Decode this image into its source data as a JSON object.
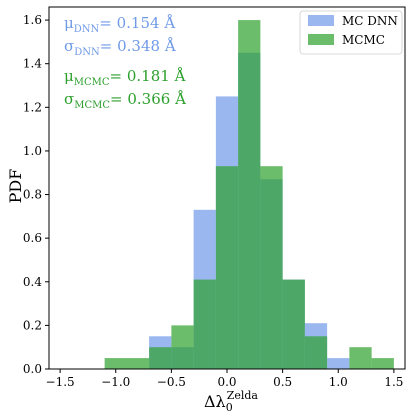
{
  "chart_data": {
    "type": "bar",
    "xlabel": "Δλ",
    "xlabel_sub": "0",
    "xlabel_sup": "Zelda",
    "ylabel": "PDF",
    "xlim": [
      -1.6,
      1.6
    ],
    "ylim": [
      0,
      1.66
    ],
    "xticks": [
      -1.5,
      -1.0,
      -0.5,
      0.0,
      0.5,
      1.0,
      1.5
    ],
    "yticks": [
      0.0,
      0.2,
      0.4,
      0.6,
      0.8,
      1.0,
      1.2,
      1.4,
      1.6
    ],
    "xtick_labels": [
      "−1.5",
      "−1.0",
      "−0.5",
      "0.0",
      "0.5",
      "1.0",
      "1.5"
    ],
    "ytick_labels": [
      "0.0",
      "0.2",
      "0.4",
      "0.6",
      "0.8",
      "1.0",
      "1.2",
      "1.4",
      "1.6"
    ],
    "bin_width": 0.2,
    "legend_placement": "top-right",
    "series": [
      {
        "name": "MC DNN",
        "color": "#6f9ae8",
        "opacity": 0.7,
        "bin_edges": [
          -0.7,
          -0.5,
          -0.3,
          -0.1,
          0.1,
          0.3,
          0.5,
          0.7,
          0.9,
          1.1
        ],
        "values": [
          0.15,
          0.1,
          0.73,
          1.25,
          1.45,
          0.87,
          0.41,
          0.21,
          0.05
        ],
        "stats": [
          {
            "symbol": "μ",
            "sub": "DNN",
            "value": "= 0.154 Å"
          },
          {
            "symbol": "σ",
            "sub": "DNN",
            "value": "= 0.348 Å"
          }
        ]
      },
      {
        "name": "MCMC",
        "color": "#2ca02c",
        "opacity": 0.7,
        "bin_edges": [
          -1.1,
          -0.7,
          -0.5,
          -0.3,
          -0.1,
          0.1,
          0.3,
          0.5,
          0.7,
          0.9,
          1.1,
          1.3,
          1.5
        ],
        "values": [
          0.05,
          0.1,
          0.2,
          0.41,
          0.93,
          1.6,
          0.93,
          0.41,
          0.15,
          0.0,
          0.1,
          0.05
        ],
        "stats": [
          {
            "symbol": "μ",
            "sub": "MCMC",
            "value": "= 0.181 Å"
          },
          {
            "symbol": "σ",
            "sub": "MCMC",
            "value": "= 0.366 Å"
          }
        ]
      }
    ]
  }
}
